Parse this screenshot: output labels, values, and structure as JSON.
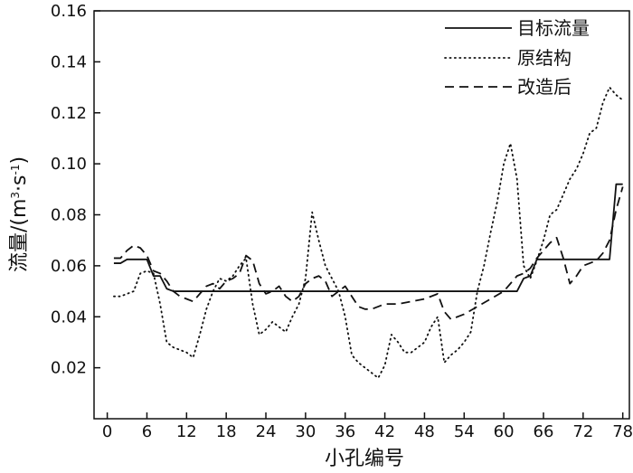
{
  "chart_data": {
    "type": "line",
    "title": "",
    "xlabel": "小孔编号",
    "ylabel": "流量/(m³·s⁻¹)",
    "ylabel_parts": {
      "prefix": "流量/(m",
      "exp1": "3",
      "middle": "·s",
      "exp2": "-1",
      "suffix": ")"
    },
    "xlim": [
      -2,
      79
    ],
    "ylim": [
      0,
      0.16
    ],
    "xticks": [
      0,
      6,
      12,
      18,
      24,
      30,
      36,
      42,
      48,
      54,
      60,
      66,
      72,
      78
    ],
    "yticks": [
      0.02,
      0.04,
      0.06,
      0.08,
      0.1,
      0.12,
      0.14,
      0.16
    ],
    "ytick_labels": [
      "0.02",
      "0.04",
      "0.06",
      "0.08",
      "0.10",
      "0.12",
      "0.14",
      "0.16"
    ],
    "grid": false,
    "legend_position": "top-right",
    "series": [
      {
        "name": "目标流量",
        "style": "solid",
        "color": "#111111",
        "x": [
          1,
          2,
          3,
          4,
          5,
          6,
          7,
          8,
          9,
          10,
          12,
          14,
          16,
          18,
          20,
          24,
          30,
          36,
          42,
          48,
          54,
          60,
          62,
          63,
          64,
          65,
          66,
          70,
          74,
          76,
          77,
          78
        ],
        "y": [
          0.061,
          0.061,
          0.0625,
          0.0625,
          0.0625,
          0.0625,
          0.056,
          0.056,
          0.051,
          0.05,
          0.05,
          0.05,
          0.05,
          0.05,
          0.05,
          0.05,
          0.05,
          0.05,
          0.05,
          0.05,
          0.05,
          0.05,
          0.05,
          0.055,
          0.056,
          0.0625,
          0.0625,
          0.0625,
          0.0625,
          0.0625,
          0.092,
          0.092
        ]
      },
      {
        "name": "原结构",
        "style": "dotted",
        "color": "#111111",
        "x": [
          1,
          2,
          3,
          4,
          5,
          6,
          7,
          8,
          9,
          10,
          12,
          13,
          14,
          15,
          16,
          17,
          18,
          19,
          20,
          21,
          22,
          23,
          24,
          25,
          26,
          27,
          28,
          29,
          30,
          31,
          32,
          33,
          34,
          35,
          36,
          37,
          38,
          39,
          40,
          41,
          42,
          43,
          44,
          45,
          46,
          47,
          48,
          49,
          50,
          51,
          52,
          53,
          54,
          55,
          56,
          57,
          58,
          59,
          60,
          61,
          62,
          63,
          64,
          65,
          66,
          67,
          68,
          69,
          70,
          71,
          72,
          73,
          74,
          75,
          76,
          77,
          78
        ],
        "y": [
          0.048,
          0.048,
          0.049,
          0.05,
          0.057,
          0.058,
          0.057,
          0.045,
          0.03,
          0.028,
          0.026,
          0.024,
          0.033,
          0.043,
          0.05,
          0.055,
          0.054,
          0.056,
          0.06,
          0.063,
          0.045,
          0.033,
          0.035,
          0.038,
          0.036,
          0.034,
          0.04,
          0.045,
          0.055,
          0.081,
          0.07,
          0.06,
          0.055,
          0.05,
          0.04,
          0.025,
          0.022,
          0.02,
          0.018,
          0.016,
          0.021,
          0.033,
          0.03,
          0.026,
          0.026,
          0.028,
          0.03,
          0.036,
          0.04,
          0.022,
          0.025,
          0.027,
          0.03,
          0.034,
          0.05,
          0.06,
          0.073,
          0.085,
          0.1,
          0.108,
          0.094,
          0.06,
          0.055,
          0.062,
          0.07,
          0.08,
          0.082,
          0.088,
          0.094,
          0.098,
          0.104,
          0.112,
          0.114,
          0.124,
          0.13,
          0.127,
          0.125
        ]
      },
      {
        "name": "改造后",
        "style": "dashed",
        "color": "#111111",
        "x": [
          1,
          2,
          3,
          4,
          5,
          6,
          7,
          8,
          9,
          10,
          11,
          12,
          13,
          14,
          15,
          16,
          17,
          18,
          19,
          20,
          21,
          22,
          23,
          24,
          25,
          26,
          27,
          28,
          29,
          30,
          31,
          32,
          33,
          34,
          35,
          36,
          37,
          38,
          39,
          40,
          42,
          44,
          46,
          48,
          50,
          51,
          52,
          54,
          56,
          58,
          60,
          62,
          63,
          64,
          65,
          66,
          67,
          68,
          69,
          70,
          71,
          72,
          73,
          74,
          75,
          76,
          77,
          78
        ],
        "y": [
          0.063,
          0.063,
          0.066,
          0.068,
          0.067,
          0.064,
          0.058,
          0.057,
          0.054,
          0.05,
          0.048,
          0.047,
          0.046,
          0.049,
          0.052,
          0.053,
          0.051,
          0.054,
          0.055,
          0.057,
          0.064,
          0.062,
          0.053,
          0.049,
          0.05,
          0.052,
          0.048,
          0.046,
          0.048,
          0.053,
          0.055,
          0.056,
          0.054,
          0.048,
          0.05,
          0.052,
          0.048,
          0.044,
          0.043,
          0.043,
          0.045,
          0.045,
          0.046,
          0.047,
          0.049,
          0.042,
          0.039,
          0.041,
          0.044,
          0.047,
          0.05,
          0.056,
          0.057,
          0.059,
          0.063,
          0.066,
          0.069,
          0.071,
          0.063,
          0.053,
          0.056,
          0.06,
          0.061,
          0.062,
          0.065,
          0.07,
          0.082,
          0.091
        ]
      }
    ]
  }
}
